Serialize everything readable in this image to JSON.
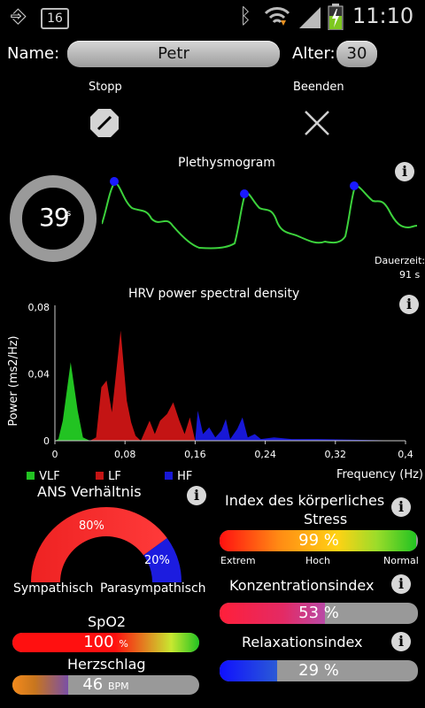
{
  "statusbar": {
    "notification_count": "16",
    "time": "11:10"
  },
  "form": {
    "name_label": "Name:",
    "name_value": "Petr",
    "age_label": "Alter:",
    "age_value": "30"
  },
  "controls": {
    "stop_label": "Stopp",
    "exit_label": "Beenden"
  },
  "timer": {
    "seconds": "39",
    "unit": "s"
  },
  "plethysmogram": {
    "title": "Plethysmogram",
    "duration_label": "Dauerzeit:",
    "duration_value": "91 s"
  },
  "hrv": {
    "title": "HRV power spectral density",
    "ylabel": "Power (ms2/Hz)",
    "xlabel": "Frequency (Hz)",
    "legend": [
      {
        "name": "VLF",
        "color": "#22c322"
      },
      {
        "name": "LF",
        "color": "#c41414"
      },
      {
        "name": "HF",
        "color": "#1818d6"
      }
    ]
  },
  "chart_data": {
    "type": "area",
    "title": "HRV power spectral density",
    "xlabel": "Frequency (Hz)",
    "ylabel": "Power (ms2/Hz)",
    "xlim": [
      0,
      0.4
    ],
    "ylim": [
      0,
      0.08
    ],
    "x_ticks": [
      "0",
      "0,08",
      "0,16",
      "0,24",
      "0,32",
      "0,4"
    ],
    "y_ticks": [
      "0",
      "0,04",
      "0,08"
    ],
    "series": [
      {
        "name": "VLF",
        "color": "#22c322",
        "points": [
          [
            0,
            0
          ],
          [
            0.004,
            0.001
          ],
          [
            0.009,
            0.012
          ],
          [
            0.018,
            0.047
          ],
          [
            0.026,
            0.018
          ],
          [
            0.032,
            0.002
          ],
          [
            0.04,
            0.0
          ]
        ]
      },
      {
        "name": "LF",
        "color": "#c41414",
        "points": [
          [
            0.04,
            0.0
          ],
          [
            0.047,
            0.002
          ],
          [
            0.053,
            0.032
          ],
          [
            0.059,
            0.036
          ],
          [
            0.065,
            0.017
          ],
          [
            0.075,
            0.066
          ],
          [
            0.082,
            0.024
          ],
          [
            0.087,
            0.011
          ],
          [
            0.092,
            0.003
          ],
          [
            0.098,
            0.0
          ],
          [
            0.108,
            0.012
          ],
          [
            0.114,
            0.004
          ],
          [
            0.12,
            0.012
          ],
          [
            0.128,
            0.016
          ],
          [
            0.135,
            0.023
          ],
          [
            0.142,
            0.012
          ],
          [
            0.148,
            0.004
          ],
          [
            0.154,
            0.014
          ],
          [
            0.16,
            0.0
          ]
        ]
      },
      {
        "name": "HF",
        "color": "#1818d6",
        "points": [
          [
            0.16,
            0.0
          ],
          [
            0.163,
            0.018
          ],
          [
            0.169,
            0.004
          ],
          [
            0.176,
            0.008
          ],
          [
            0.183,
            0.002
          ],
          [
            0.19,
            0.006
          ],
          [
            0.195,
            0.013
          ],
          [
            0.2,
            0.001
          ],
          [
            0.208,
            0.007
          ],
          [
            0.214,
            0.014
          ],
          [
            0.22,
            0.002
          ],
          [
            0.228,
            0.004
          ],
          [
            0.235,
            0.001
          ],
          [
            0.25,
            0.002
          ],
          [
            0.27,
            0.001
          ],
          [
            0.3,
            0.001
          ],
          [
            0.35,
            0.0005
          ],
          [
            0.4,
            0.0
          ]
        ]
      }
    ]
  },
  "ans": {
    "title": "ANS Verhältnis",
    "sympathetic_pct": 80,
    "parasympathetic_pct": 20,
    "sympathetic_text": "80%",
    "parasympathetic_text": "20%",
    "sympathetic_label": "Sympathisch",
    "parasympathetic_label": "Parasympathisch"
  },
  "spo2": {
    "title": "SpO2",
    "value": "100",
    "unit": "%",
    "level": 1.0
  },
  "heart": {
    "title": "Herzschlag",
    "value": "46",
    "unit": "BPM",
    "level": 0.3
  },
  "stress": {
    "title_line1": "Index des körperliches",
    "title_line2": "Stress",
    "value_text": "99 %",
    "level": 0.99,
    "scale_low": "Extrem",
    "scale_mid": "Hoch",
    "scale_high": "Normal"
  },
  "concentration": {
    "title": "Konzentrationsindex",
    "value_text": "53 %",
    "level": 0.53
  },
  "relaxation": {
    "title": "Relaxationsindex",
    "value_text": "29 %",
    "level": 0.29
  }
}
